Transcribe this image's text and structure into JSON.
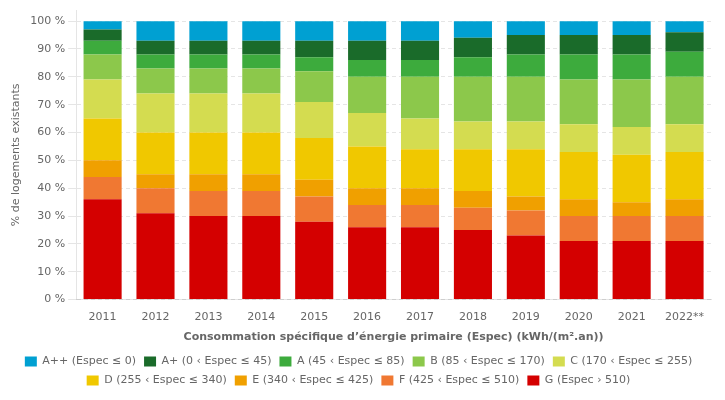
{
  "chart_data": {
    "type": "bar",
    "stacked": true,
    "x_label": "Consommation spécifique d’énergie primaire (Espec) (kWh/(m².an))",
    "y_label": "% de logements existants",
    "categories": [
      "2011",
      "2012",
      "2013",
      "2014",
      "2015",
      "2016",
      "2017",
      "2018",
      "2019",
      "2020",
      "2021",
      "2022**"
    ],
    "series": [
      {
        "name": "G (Espec › 510)",
        "color": "#d40000",
        "values": [
          36,
          31,
          30,
          30,
          28,
          26,
          26,
          25,
          23,
          21,
          21,
          21
        ]
      },
      {
        "name": "F (425 ‹ Espec ≤ 510)",
        "color": "#f07832",
        "values": [
          8,
          9,
          9,
          9,
          9,
          8,
          8,
          8,
          9,
          9,
          9,
          9
        ]
      },
      {
        "name": "E (340 ‹ Espec ≤ 425)",
        "color": "#f0a000",
        "values": [
          6,
          5,
          6,
          6,
          6,
          6,
          6,
          6,
          5,
          6,
          5,
          6
        ]
      },
      {
        "name": "D (255 ‹ Espec ≤ 340)",
        "color": "#f0c800",
        "values": [
          15,
          15,
          15,
          15,
          15,
          15,
          14,
          15,
          17,
          17,
          17,
          17
        ]
      },
      {
        "name": "C (170 ‹ Espec ≤ 255)",
        "color": "#d4dc50",
        "values": [
          14,
          14,
          14,
          14,
          13,
          12,
          11,
          10,
          10,
          10,
          10,
          10
        ]
      },
      {
        "name": "B (85 ‹ Espec ≤ 170)",
        "color": "#8cc84b",
        "values": [
          9,
          9,
          9,
          9,
          11,
          13,
          15,
          16,
          16,
          16,
          17,
          17
        ]
      },
      {
        "name": "A (45 ‹ Espec ≤ 85)",
        "color": "#3dab3d",
        "values": [
          5,
          5,
          5,
          5,
          5,
          6,
          6,
          7,
          8,
          9,
          9,
          9
        ]
      },
      {
        "name": "A+ (0 ‹ Espec ≤ 45)",
        "color": "#1a6b2a",
        "values": [
          4,
          5,
          5,
          5,
          6,
          7,
          7,
          7,
          7,
          7,
          7,
          7
        ]
      },
      {
        "name": "A++ (Espec ≤ 0)",
        "color": "#00a0d2",
        "values": [
          3,
          7,
          7,
          7,
          7,
          7,
          7,
          6,
          5,
          5,
          5,
          4
        ]
      }
    ],
    "ylim": [
      0,
      104
    ],
    "yticks": [
      {
        "value": 0,
        "label": "0 %"
      },
      {
        "value": 10,
        "label": "10 %"
      },
      {
        "value": 20,
        "label": "20 %"
      },
      {
        "value": 30,
        "label": "30 %"
      },
      {
        "value": 40,
        "label": "40 %"
      },
      {
        "value": 50,
        "label": "50 %"
      },
      {
        "value": 60,
        "label": "60 %"
      },
      {
        "value": 70,
        "label": "70 %"
      },
      {
        "value": 80,
        "label": "80 %"
      },
      {
        "value": 90,
        "label": "90 %"
      },
      {
        "value": 100,
        "label": "100 %"
      }
    ],
    "grid": true,
    "legend": "bottom"
  }
}
